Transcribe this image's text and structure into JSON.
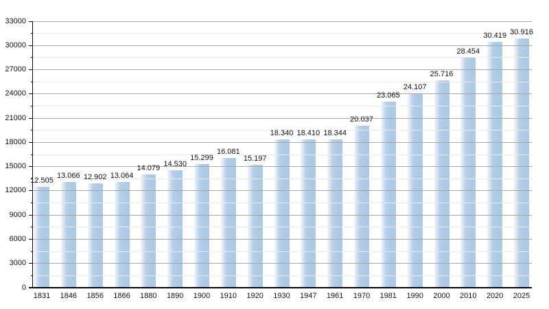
{
  "chart_data": {
    "type": "bar",
    "title": "",
    "xlabel": "",
    "ylabel": "",
    "categories": [
      "1831",
      "1846",
      "1856",
      "1866",
      "1880",
      "1890",
      "1900",
      "1910",
      "1920",
      "1930",
      "1947",
      "1961",
      "1970",
      "1981",
      "1990",
      "2000",
      "2010",
      "2020",
      "2025"
    ],
    "values": [
      12505,
      13066,
      12902,
      13064,
      14079,
      14530,
      15299,
      16081,
      15197,
      18340,
      18410,
      18344,
      20037,
      23065,
      24107,
      25716,
      28454,
      30419,
      30916
    ],
    "value_labels": [
      "12.505",
      "13.066",
      "12.902",
      "13.064",
      "14.079",
      "14.530",
      "15.299",
      "16.081",
      "15.197",
      "18.340",
      "18.410",
      "18.344",
      "20.037",
      "23.065",
      "24.107",
      "25.716",
      "28.454",
      "30.419",
      "30.916"
    ],
    "ylim": [
      0,
      33000
    ],
    "y_major_step": 3000,
    "y_minor_step": 1500,
    "y_tick_labels": [
      "0",
      "3000",
      "6000",
      "9000",
      "12000",
      "15000",
      "18000",
      "21000",
      "24000",
      "27000",
      "30000",
      "33000"
    ],
    "legend": null,
    "grid": "horizontal major+minor, drawn over bars",
    "colors": {
      "background": "#ffffff",
      "bar_main": "#adc9e4",
      "bar_mid": "#b7d0e9",
      "bar_edge_light": "#f2f7fc",
      "major_grid": "#a6a6a6",
      "minor_grid": "#eaeaea",
      "axis": "#000000",
      "text": "#111111"
    }
  }
}
